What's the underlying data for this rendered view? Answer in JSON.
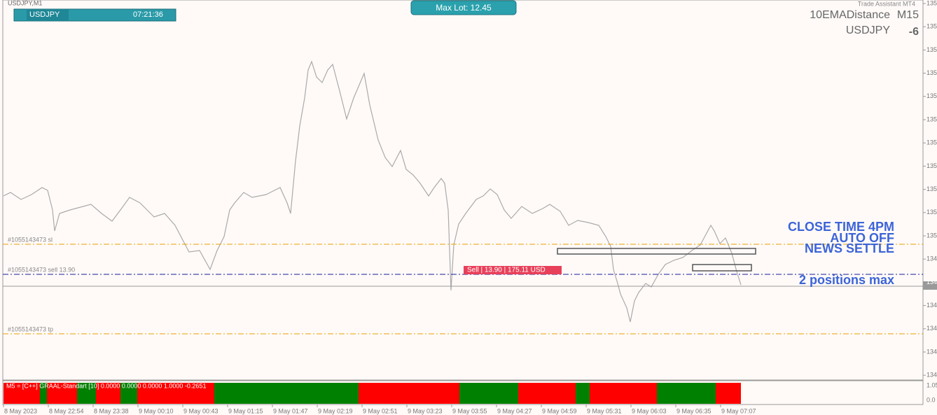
{
  "header": {
    "symbol_period": "USDJPY,M1",
    "toolbar": {
      "symbol": "USDJPY",
      "time": "07:21:36"
    },
    "max_lot": "Max Lot: 12.45",
    "trade_assistant": "Trade Assistant MT4"
  },
  "indicator_info": {
    "name": "10EMADistance",
    "timeframe": "M15",
    "symbol": "USDJPY",
    "value": "-6"
  },
  "orders": {
    "sl_label": "#1055143473 sl",
    "sell_label": "#1055143473 sell 13.90",
    "tp_label": "#1055143473 tp",
    "sell_tag": "Sell | 13.90 | 175.11 USD"
  },
  "notes": [
    "CLOSE TIME 4PM",
    "AUTO OFF",
    "NEWS SETTLE",
    "2 positions max"
  ],
  "price_axis": [
    "135",
    "135",
    "135",
    "135",
    "135",
    "135",
    "135",
    "135",
    "135",
    "135",
    "135",
    "134",
    "134",
    "134",
    "134",
    "134",
    "134"
  ],
  "indicator_pane": {
    "label": "M5 = [C++] GRAAL-Standart [10] 0.0000 0.0000 0.0000 1.0000 -0.2651",
    "axis": [
      "1.05",
      "0.0"
    ]
  },
  "time_axis": [
    "8 May 2023",
    "8 May 22:54",
    "8 May 23:38",
    "9 May 00:10",
    "9 May 00:43",
    "9 May 01:15",
    "9 May 01:47",
    "9 May 02:19",
    "9 May 02:51",
    "9 May 03:23",
    "9 May 03:55",
    "9 May 04:27",
    "9 May 04:59",
    "9 May 05:31",
    "9 May 06:03",
    "9 May 06:35",
    "9 May 07:07"
  ]
}
